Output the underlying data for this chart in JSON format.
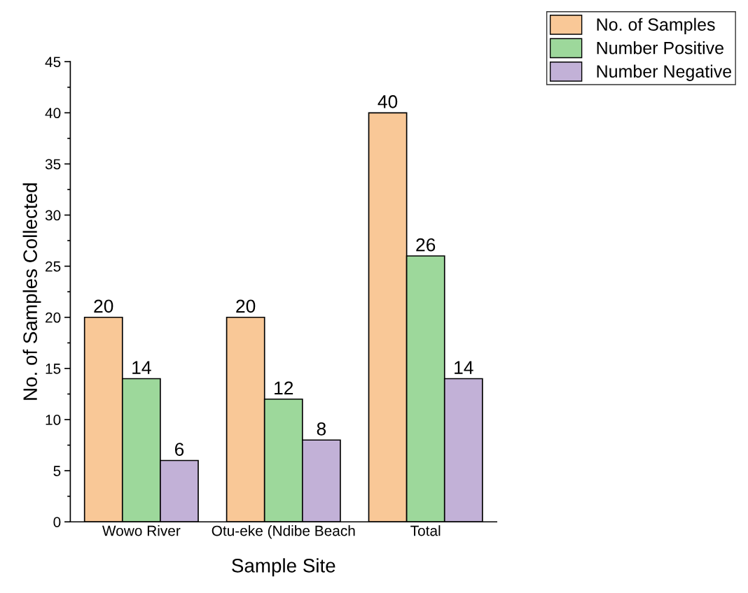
{
  "chart_data": {
    "type": "bar",
    "xlabel": "Sample Site",
    "ylabel": "No. of Samples Collected",
    "categories": [
      "Wowo River",
      "Otu-eke (Ndibe Beach",
      "Total"
    ],
    "series": [
      {
        "name": "No. of Samples",
        "color": "#f9c897",
        "values": [
          20,
          20,
          40
        ]
      },
      {
        "name": "Number Positive",
        "color": "#9dd89b",
        "values": [
          14,
          12,
          26
        ]
      },
      {
        "name": "Number Negative",
        "color": "#c2b1d7",
        "values": [
          6,
          8,
          14
        ]
      }
    ],
    "ylim": [
      0,
      45
    ],
    "yticks": [
      0,
      5,
      10,
      15,
      20,
      25,
      30,
      35,
      40,
      45
    ],
    "data_labels": true,
    "legend": "top right",
    "grid": false
  }
}
